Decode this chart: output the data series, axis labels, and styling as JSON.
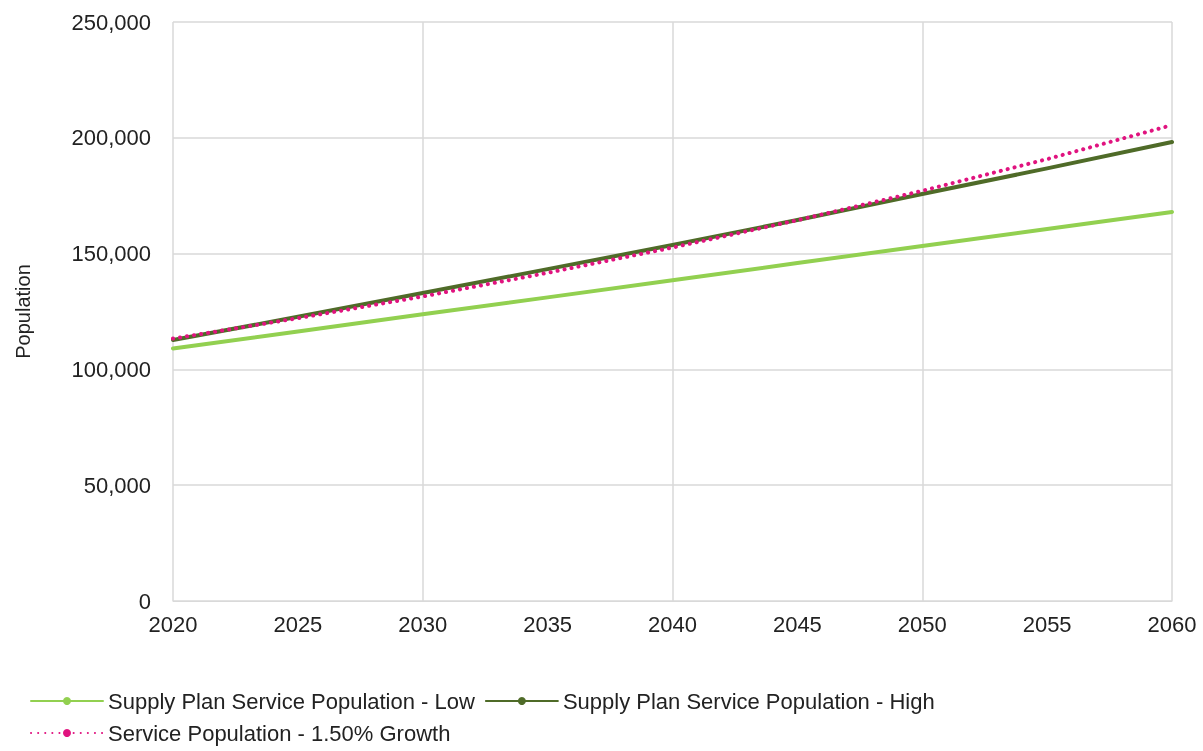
{
  "chart_data": {
    "type": "line",
    "ylabel": "Population",
    "x": [
      2020,
      2025,
      2030,
      2035,
      2040,
      2045,
      2050,
      2055,
      2060
    ],
    "series": [
      {
        "name": "Supply Plan Service Population - Low",
        "color": "#92d050",
        "line_style": "solid",
        "values": [
          109000,
          116400,
          123800,
          131100,
          138500,
          145900,
          153300,
          160600,
          168000
        ]
      },
      {
        "name": "Supply Plan Service Population - High",
        "color": "#4f6b28",
        "line_style": "solid",
        "values": [
          112700,
          122700,
          133000,
          143300,
          153700,
          164500,
          175700,
          186800,
          198200
        ]
      },
      {
        "name": "Service Population - 1.50% Growth",
        "color": "#e0137f",
        "line_style": "dotted",
        "values": [
          113300,
          122100,
          131500,
          141700,
          152600,
          164400,
          177100,
          190800,
          205500
        ]
      }
    ],
    "xlim": [
      2020,
      2060
    ],
    "xticks": [
      2020,
      2025,
      2030,
      2035,
      2040,
      2045,
      2050,
      2055,
      2060
    ],
    "ylim": [
      0,
      250000
    ],
    "yticks": [
      0,
      {
        "value": 50000,
        "label": "50,000"
      },
      {
        "value": 100000,
        "label": "100,000"
      },
      {
        "value": 150000,
        "label": "150,000"
      },
      {
        "value": 200000,
        "label": "200,000"
      },
      {
        "value": 250000,
        "label": "250,000"
      }
    ],
    "grid": true,
    "legend": "bottom",
    "marker": "none"
  }
}
